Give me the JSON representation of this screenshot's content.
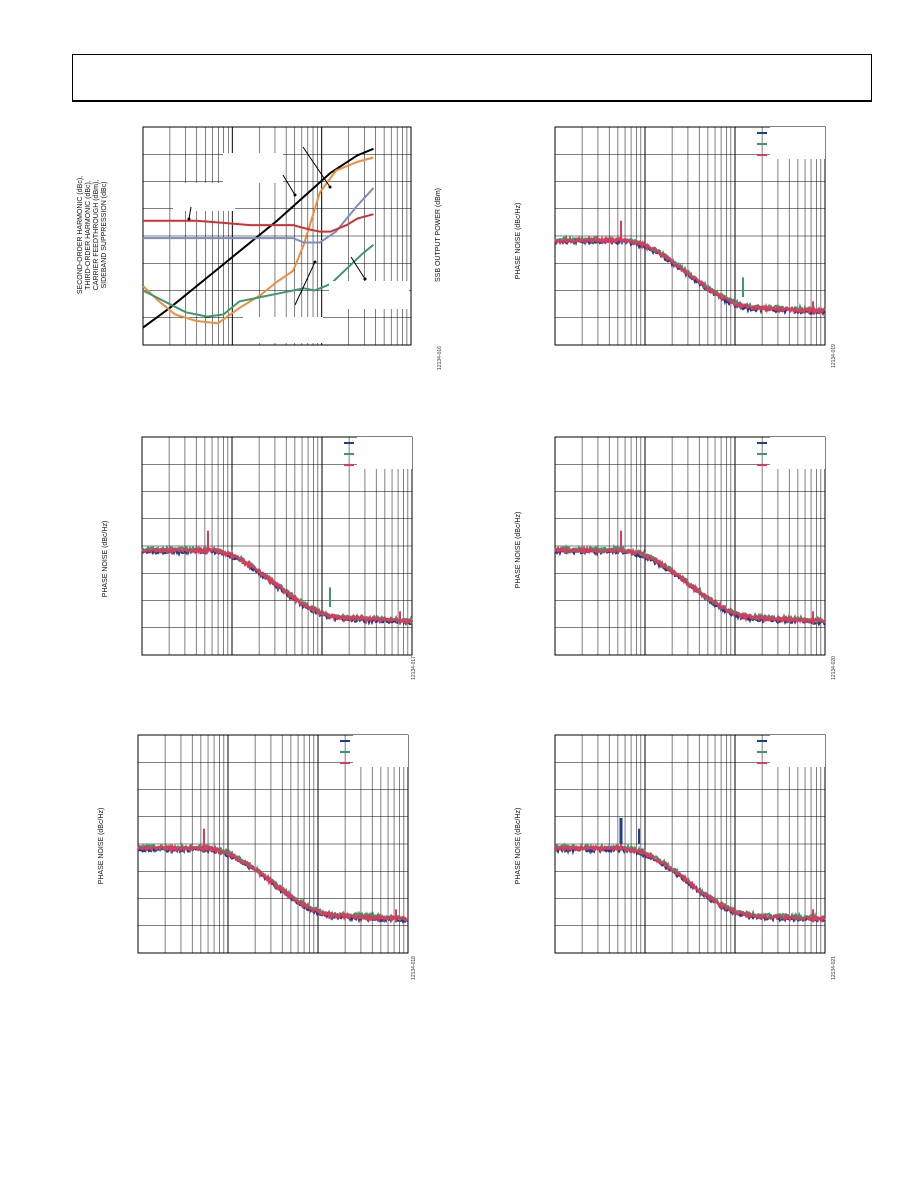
{
  "header": {
    "title": ""
  },
  "colors": {
    "blue": "#1f3d8c",
    "green": "#3a9a6a",
    "red": "#e0385a",
    "black": "#000000",
    "orange": "#f28c3c",
    "slate": "#7b8cbf",
    "darkred": "#d23030",
    "grid": "#000000"
  },
  "chart_data": [
    {
      "id": "c1",
      "type": "line",
      "ylabel_lines": [
        "SECOND-ORDER HARMONIC (dBc),",
        "THIRD-ORDER HARMONIC (dBc),",
        "CARRIER FEEDTHROUGH (dBm),",
        "SIDEBAND SUPPRESSION (dBc)"
      ],
      "y2label": "SSB OUTPUT POWER (dBm)",
      "figure": "12134-016",
      "xlim": [
        0,
        100
      ],
      "ylim": [
        0,
        100
      ],
      "series": [
        {
          "name": "",
          "color": "black",
          "x": [
            0,
            10,
            20,
            30,
            40,
            50,
            60,
            70,
            80,
            86
          ],
          "y": [
            8,
            17,
            27,
            37,
            47,
            57,
            68,
            79,
            87,
            90
          ]
        },
        {
          "name": "",
          "color": "orange",
          "x": [
            0,
            6,
            12,
            20,
            28,
            36,
            44,
            50,
            56,
            60,
            66,
            72,
            80,
            86
          ],
          "y": [
            27,
            20,
            14,
            11,
            10,
            17,
            23,
            29,
            34,
            46,
            70,
            80,
            84,
            86
          ]
        },
        {
          "name": "",
          "color": "slate",
          "x": [
            0,
            10,
            20,
            30,
            40,
            50,
            56,
            60,
            66,
            72,
            80,
            86
          ],
          "y": [
            49,
            49,
            49,
            49,
            49,
            49,
            49,
            47,
            47,
            52,
            64,
            72
          ]
        },
        {
          "name": "",
          "color": "darkred",
          "x": [
            0,
            10,
            20,
            30,
            40,
            50,
            56,
            62,
            66,
            70,
            76,
            80,
            86
          ],
          "y": [
            57,
            57,
            57,
            56,
            55,
            55,
            55,
            53,
            52,
            52,
            55,
            58,
            60
          ]
        },
        {
          "name": "",
          "color": "green",
          "x": [
            0,
            8,
            16,
            24,
            30,
            36,
            44,
            52,
            60,
            64,
            70,
            76,
            82,
            86
          ],
          "y": [
            25,
            20,
            15,
            13,
            14,
            20,
            22,
            24,
            26,
            25,
            28,
            35,
            42,
            46
          ]
        }
      ]
    },
    {
      "id": "c2",
      "type": "line",
      "ylabel": "PHASE NOISE (dBc/Hz)",
      "figure": "12134-019",
      "legend": [
        "",
        "",
        ""
      ],
      "spur_blue": 0,
      "spur_green": 1
    },
    {
      "id": "c3",
      "type": "line",
      "ylabel": "PHASE NOISE (dBc/Hz)",
      "figure": "12134-017",
      "legend": [
        "",
        "",
        ""
      ],
      "spur_blue": 0,
      "spur_green": 1
    },
    {
      "id": "c4",
      "type": "line",
      "ylabel": "PHASE NOISE (dBc/Hz)",
      "figure": "12134-020",
      "legend": [
        "",
        "",
        ""
      ],
      "spur_blue": 0,
      "spur_green": 0
    },
    {
      "id": "c5",
      "type": "line",
      "ylabel": "PHASE NOISE (dBc/Hz)",
      "figure": "12134-018",
      "legend": [
        "",
        "",
        ""
      ],
      "spur_blue": 0,
      "spur_green": 0
    },
    {
      "id": "c6",
      "type": "line",
      "ylabel": "PHASE NOISE (dBc/Hz)",
      "figure": "12134-021",
      "legend": [
        "",
        "",
        ""
      ],
      "spur_blue": 1,
      "spur_green": 0
    }
  ]
}
